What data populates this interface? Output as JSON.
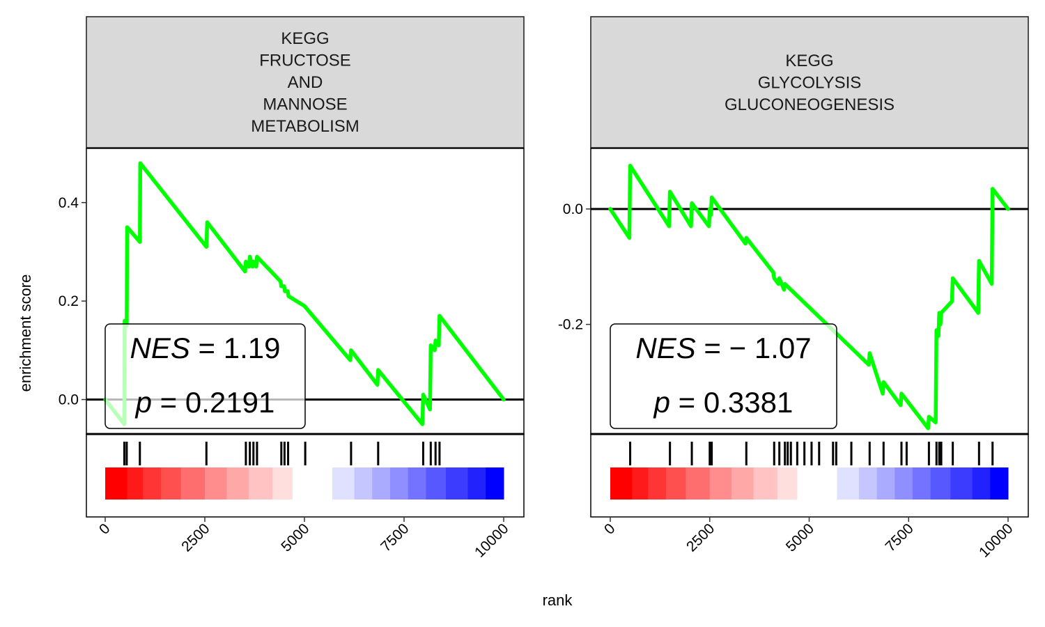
{
  "xlabel": "rank",
  "ylabel": "enrichment score",
  "colors": {
    "curve": "#00ff00",
    "strip_bg": "#d9d9d9",
    "positive": "#ff0000",
    "negative": "#0000ff"
  },
  "chart_data": [
    {
      "type": "line",
      "title_lines": [
        "KEGG",
        "FRUCTOSE",
        "AND",
        "MANNOSE",
        "METABOLISM"
      ],
      "xlim": [
        0,
        10000
      ],
      "ylim": [
        -0.07,
        0.51
      ],
      "x_ticks": [
        "0",
        "2500",
        "5000",
        "7500",
        "10000"
      ],
      "y_ticks": [
        {
          "value": 0.4,
          "label": "0.4"
        },
        {
          "value": 0.2,
          "label": "0.2"
        },
        {
          "value": 0.0,
          "label": "0.0"
        }
      ],
      "hline": 0,
      "nes_label": "NES",
      "nes_value": "1.19",
      "p_label": "p",
      "p_value": "0.2191",
      "series": [
        {
          "x": [
            0,
            480,
            490,
            540,
            550,
            870,
            880,
            2540,
            2560,
            3510,
            3530,
            3610,
            3630,
            3700,
            3720,
            3790,
            3810,
            4400,
            4420,
            4490,
            4510,
            4580,
            4600,
            5000,
            6150,
            6170,
            6830,
            6850,
            7960,
            7980,
            8150,
            8170,
            8270,
            8290,
            8370,
            8390,
            10000
          ],
          "y": [
            0.0,
            -0.05,
            0.16,
            0.15,
            0.35,
            0.32,
            0.48,
            0.31,
            0.36,
            0.26,
            0.28,
            0.27,
            0.29,
            0.27,
            0.28,
            0.27,
            0.29,
            0.24,
            0.23,
            0.23,
            0.22,
            0.22,
            0.21,
            0.19,
            0.08,
            0.1,
            0.03,
            0.06,
            -0.05,
            0.01,
            -0.02,
            0.11,
            0.1,
            0.12,
            0.11,
            0.17,
            0.0
          ]
        }
      ],
      "hits": [
        480,
        540,
        870,
        2540,
        3530,
        3630,
        3720,
        3810,
        4420,
        4500,
        4590,
        5020,
        6170,
        6850,
        7980,
        8170,
        8290,
        8390
      ],
      "heatmap_segments": [
        {
          "start": 0,
          "end": 550,
          "color": "#ff0000"
        },
        {
          "start": 550,
          "end": 950,
          "color": "#ff1a1a"
        },
        {
          "start": 950,
          "end": 1400,
          "color": "#ff3535"
        },
        {
          "start": 1400,
          "end": 1900,
          "color": "#ff5050"
        },
        {
          "start": 1900,
          "end": 2500,
          "color": "#ff6e6e"
        },
        {
          "start": 2500,
          "end": 3050,
          "color": "#ff8d8d"
        },
        {
          "start": 3050,
          "end": 3600,
          "color": "#ffa8a8"
        },
        {
          "start": 3600,
          "end": 4200,
          "color": "#ffc3c3"
        },
        {
          "start": 4200,
          "end": 4700,
          "color": "#ffdede"
        },
        {
          "start": 4700,
          "end": 5700,
          "color": "#ffffff"
        },
        {
          "start": 5700,
          "end": 6250,
          "color": "#e0e0ff"
        },
        {
          "start": 6250,
          "end": 6700,
          "color": "#c6c6ff"
        },
        {
          "start": 6700,
          "end": 7150,
          "color": "#aaaaff"
        },
        {
          "start": 7150,
          "end": 7600,
          "color": "#8f8fff"
        },
        {
          "start": 7600,
          "end": 8050,
          "color": "#7373ff"
        },
        {
          "start": 8050,
          "end": 8550,
          "color": "#5858ff"
        },
        {
          "start": 8550,
          "end": 9100,
          "color": "#3c3cff"
        },
        {
          "start": 9100,
          "end": 9550,
          "color": "#2222ff"
        },
        {
          "start": 9550,
          "end": 10000,
          "color": "#0000ff"
        }
      ]
    },
    {
      "type": "line",
      "title_lines": [
        "KEGG",
        "GLYCOLYSIS",
        "GLUCONEOGENESIS"
      ],
      "xlim": [
        0,
        10000
      ],
      "ylim": [
        -0.39,
        0.105
      ],
      "x_ticks": [
        "0",
        "2500",
        "5000",
        "7500",
        "10000"
      ],
      "y_ticks": [
        {
          "value": 0.0,
          "label": "0.0"
        },
        {
          "value": -0.2,
          "label": "-0.2"
        }
      ],
      "hline": 0,
      "nes_label": "NES",
      "nes_value": "− 1.07",
      "p_label": "p",
      "p_value": "0.3381",
      "series": [
        {
          "x": [
            0,
            480,
            500,
            1480,
            1500,
            2030,
            2050,
            2480,
            2500,
            2530,
            2550,
            3400,
            3420,
            4100,
            4120,
            4230,
            4250,
            4370,
            4390,
            6500,
            6520,
            6850,
            6870,
            7300,
            7320,
            7990,
            8010,
            8180,
            8200,
            8250,
            8270,
            8300,
            8320,
            8590,
            8610,
            9250,
            9270,
            9590,
            9610,
            10000
          ],
          "y": [
            0.0,
            -0.05,
            0.075,
            -0.03,
            0.03,
            -0.03,
            0.01,
            -0.03,
            0.0,
            -0.01,
            0.02,
            -0.06,
            -0.05,
            -0.11,
            -0.12,
            -0.13,
            -0.12,
            -0.14,
            -0.13,
            -0.27,
            -0.25,
            -0.32,
            -0.3,
            -0.34,
            -0.32,
            -0.38,
            -0.36,
            -0.37,
            -0.21,
            -0.22,
            -0.18,
            -0.2,
            -0.18,
            -0.16,
            -0.12,
            -0.18,
            -0.09,
            -0.13,
            0.035,
            0.0
          ]
        }
      ],
      "hits": [
        500,
        1500,
        2050,
        2500,
        2550,
        3420,
        4120,
        4250,
        4390,
        4460,
        4540,
        4700,
        4880,
        5060,
        5250,
        5600,
        5680,
        6060,
        6520,
        6870,
        7320,
        7450,
        8010,
        8200,
        8270,
        8320,
        8610,
        9270,
        9610
      ],
      "heatmap_segments": [
        {
          "start": 0,
          "end": 550,
          "color": "#ff0000"
        },
        {
          "start": 550,
          "end": 950,
          "color": "#ff1a1a"
        },
        {
          "start": 950,
          "end": 1400,
          "color": "#ff3535"
        },
        {
          "start": 1400,
          "end": 1900,
          "color": "#ff5050"
        },
        {
          "start": 1900,
          "end": 2500,
          "color": "#ff6e6e"
        },
        {
          "start": 2500,
          "end": 3050,
          "color": "#ff8d8d"
        },
        {
          "start": 3050,
          "end": 3600,
          "color": "#ffa8a8"
        },
        {
          "start": 3600,
          "end": 4200,
          "color": "#ffc3c3"
        },
        {
          "start": 4200,
          "end": 4700,
          "color": "#ffdede"
        },
        {
          "start": 4700,
          "end": 5700,
          "color": "#ffffff"
        },
        {
          "start": 5700,
          "end": 6250,
          "color": "#e0e0ff"
        },
        {
          "start": 6250,
          "end": 6700,
          "color": "#c6c6ff"
        },
        {
          "start": 6700,
          "end": 7150,
          "color": "#aaaaff"
        },
        {
          "start": 7150,
          "end": 7600,
          "color": "#8f8fff"
        },
        {
          "start": 7600,
          "end": 8050,
          "color": "#7373ff"
        },
        {
          "start": 8050,
          "end": 8550,
          "color": "#5858ff"
        },
        {
          "start": 8550,
          "end": 9100,
          "color": "#3c3cff"
        },
        {
          "start": 9100,
          "end": 9550,
          "color": "#2222ff"
        },
        {
          "start": 9550,
          "end": 10000,
          "color": "#0000ff"
        }
      ]
    }
  ]
}
